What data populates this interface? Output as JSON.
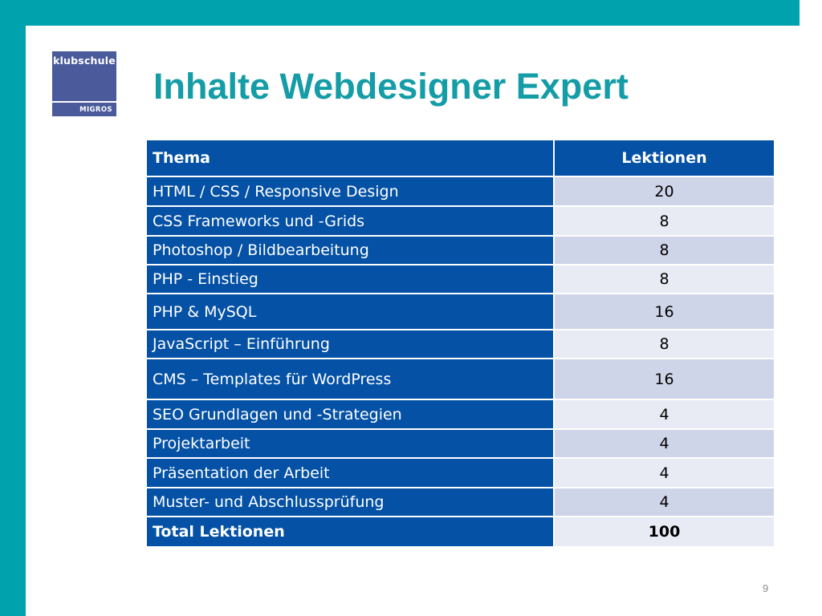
{
  "logo": {
    "top_text": "klubschule",
    "bottom_text": "MIGROS"
  },
  "title": "Inhalte Webdesigner Expert",
  "table": {
    "headers": [
      "Thema",
      "Lektionen"
    ],
    "rows": [
      {
        "topic": "HTML / CSS / Responsive Design",
        "lessons": "20"
      },
      {
        "topic": "CSS Frameworks und -Grids",
        "lessons": "8"
      },
      {
        "topic": "Photoshop / Bildbearbeitung",
        "lessons": "8"
      },
      {
        "topic": "PHP - Einstieg",
        "lessons": "8"
      },
      {
        "topic": "PHP & MySQL",
        "lessons": "16"
      },
      {
        "topic": "JavaScript – Einführung",
        "lessons": "8"
      },
      {
        "topic": "CMS – Templates für WordPress",
        "lessons": "16"
      },
      {
        "topic": "SEO Grundlagen und -Strategien",
        "lessons": "4"
      },
      {
        "topic": "Projektarbeit",
        "lessons": "4"
      },
      {
        "topic": "Präsentation der Arbeit",
        "lessons": "4"
      },
      {
        "topic": "Muster- und Abschlussprüfung",
        "lessons": "4"
      }
    ],
    "total": {
      "topic": "Total Lektionen",
      "lessons": "100"
    }
  },
  "page_number": "9",
  "colors": {
    "frame": "#00a3ad",
    "title": "#149ca7",
    "header_blue": "#0451a5",
    "cell_light_1": "#cfd5e8",
    "cell_light_2": "#e8ebf4",
    "logo_bg": "#4a5a9b"
  }
}
